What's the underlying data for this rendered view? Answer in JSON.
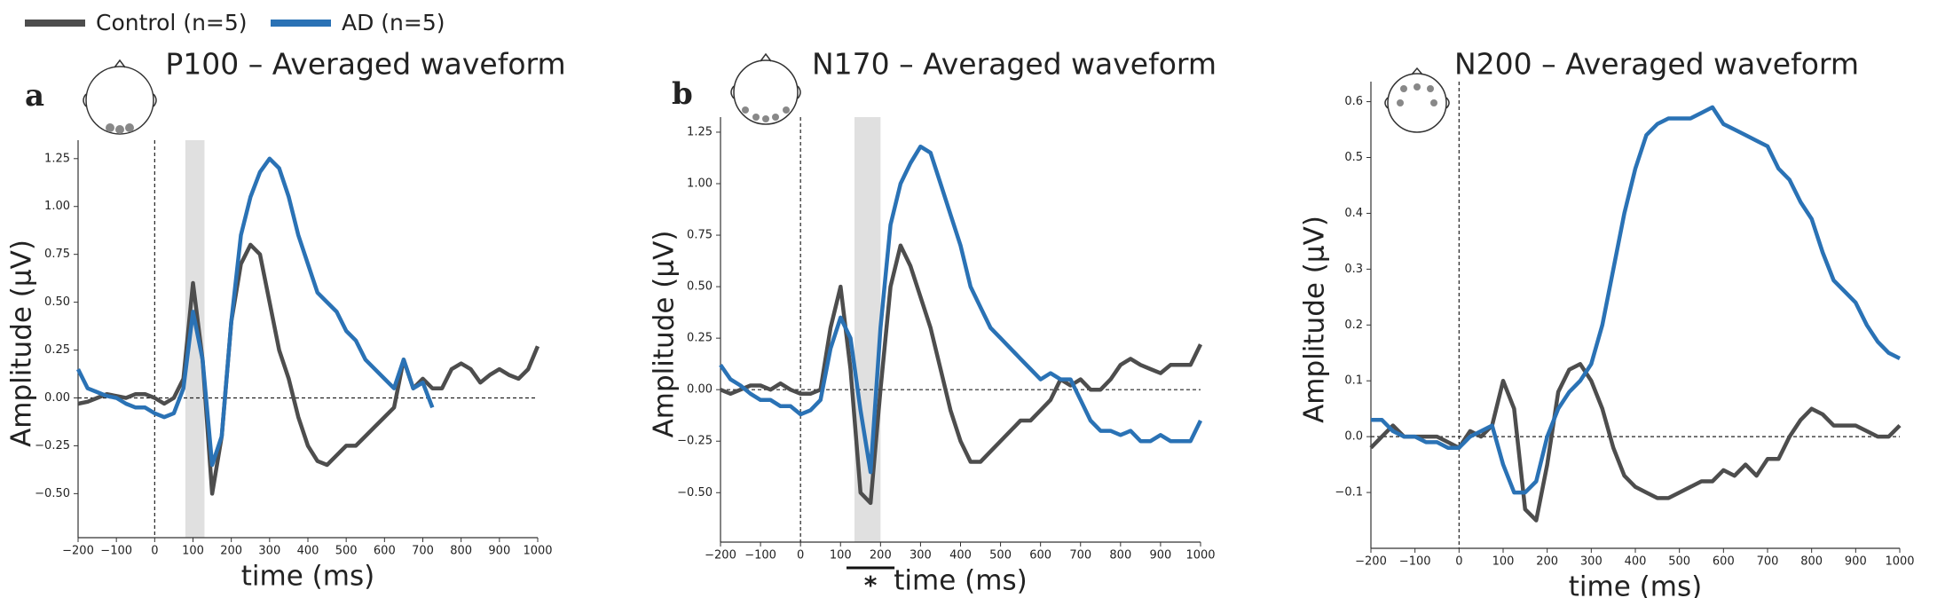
{
  "chart_data": [
    {
      "type": "line",
      "panel_label": "a",
      "title": "P100 – Averaged waveform",
      "xlabel": "time (ms)",
      "ylabel": "Amplitude (μV)",
      "xlim": [
        -200,
        1000
      ],
      "ylim": [
        -0.73,
        1.3
      ],
      "xticks": [
        {
          "value": -200,
          "label": "−200"
        },
        {
          "value": -100,
          "label": "−100"
        },
        0,
        100,
        200,
        300,
        400,
        500,
        600,
        700,
        800,
        900,
        1000
      ],
      "yticks": [
        {
          "value": -0.5,
          "label": "−0.50"
        },
        {
          "value": -0.25,
          "label": "−0.25"
        },
        {
          "value": 0,
          "label": "0.00"
        },
        0.25,
        {
          "value": 0.5,
          "label": "0.50"
        },
        0.75,
        {
          "value": 1,
          "label": "1.00"
        },
        1.25
      ],
      "shaded_interval": [
        80,
        130
      ],
      "x": [
        -200,
        -175,
        -150,
        -125,
        -100,
        -75,
        -50,
        -25,
        0,
        25,
        50,
        75,
        100,
        125,
        150,
        175,
        200,
        225,
        250,
        275,
        300,
        325,
        350,
        375,
        400,
        425,
        450,
        475,
        500,
        525,
        550,
        575,
        600,
        625,
        650,
        675,
        700,
        725,
        750,
        775,
        800,
        825,
        850,
        875,
        900,
        925,
        950,
        975,
        1000
      ],
      "series": [
        {
          "name": "Control (n=5)",
          "color": "#4d4d4d",
          "values": [
            -0.03,
            -0.02,
            0.0,
            0.02,
            0.01,
            0.0,
            0.02,
            0.02,
            0.0,
            -0.03,
            0.0,
            0.1,
            0.6,
            0.2,
            -0.5,
            -0.2,
            0.4,
            0.7,
            0.8,
            0.75,
            0.5,
            0.25,
            0.1,
            -0.1,
            -0.25,
            -0.33,
            -0.35,
            -0.3,
            -0.25,
            -0.25,
            -0.2,
            -0.15,
            -0.1,
            -0.05,
            0.2,
            0.05,
            0.1,
            0.05,
            0.05,
            0.15,
            0.18,
            0.15,
            0.08,
            0.12,
            0.15,
            0.12,
            0.1,
            0.15,
            0.27
          ]
        },
        {
          "name": "AD (n=5)",
          "color": "#2a72b5",
          "values": [
            0.15,
            0.05,
            0.03,
            0.01,
            0.0,
            -0.03,
            -0.05,
            -0.05,
            -0.08,
            -0.1,
            -0.08,
            0.05,
            0.45,
            0.2,
            -0.35,
            -0.2,
            0.4,
            0.85,
            1.05,
            1.18,
            1.25,
            1.2,
            1.05,
            0.85,
            0.7,
            0.55,
            0.5,
            0.45,
            0.35,
            0.3,
            0.2,
            0.15,
            0.1,
            0.05,
            0.2,
            0.05,
            0.08,
            -0.05,
            null,
            null,
            null,
            null,
            null,
            null,
            null,
            null,
            null,
            null,
            null
          ]
        }
      ]
    },
    {
      "type": "line",
      "panel_label": "b",
      "title": "N170 – Averaged waveform",
      "xlabel": "time (ms)",
      "ylabel": "Amplitude (μV)",
      "xlim": [
        -200,
        1000
      ],
      "ylim": [
        -0.74,
        1.28
      ],
      "xticks": [
        {
          "value": -200,
          "label": "−200"
        },
        {
          "value": -100,
          "label": "−100"
        },
        0,
        100,
        200,
        300,
        400,
        500,
        600,
        700,
        800,
        900,
        1000
      ],
      "yticks": [
        {
          "value": -0.5,
          "label": "−0.50"
        },
        {
          "value": -0.25,
          "label": "−0.25"
        },
        {
          "value": 0,
          "label": "0.00"
        },
        0.25,
        {
          "value": 0.5,
          "label": "0.50"
        },
        0.75,
        {
          "value": 1,
          "label": "1.00"
        },
        1.25
      ],
      "shaded_interval": [
        135,
        200
      ],
      "significance": {
        "text": "*",
        "x": [
          115,
          235
        ]
      },
      "x": [
        -200,
        -175,
        -150,
        -125,
        -100,
        -75,
        -50,
        -25,
        0,
        25,
        50,
        75,
        100,
        125,
        150,
        175,
        200,
        225,
        250,
        275,
        300,
        325,
        350,
        375,
        400,
        425,
        450,
        475,
        500,
        525,
        550,
        575,
        600,
        625,
        650,
        675,
        700,
        725,
        750,
        775,
        800,
        825,
        850,
        875,
        900,
        925,
        950,
        975,
        1000
      ],
      "series": [
        {
          "color": "#4d4d4d",
          "values": [
            0.0,
            -0.02,
            0.0,
            0.02,
            0.02,
            0.0,
            0.03,
            0.0,
            -0.02,
            -0.02,
            0.0,
            0.3,
            0.5,
            0.1,
            -0.5,
            -0.55,
            0.0,
            0.5,
            0.7,
            0.6,
            0.45,
            0.3,
            0.1,
            -0.1,
            -0.25,
            -0.35,
            -0.35,
            -0.3,
            -0.25,
            -0.2,
            -0.15,
            -0.15,
            -0.1,
            -0.05,
            0.05,
            0.02,
            0.05,
            0.0,
            0.0,
            0.05,
            0.12,
            0.15,
            0.12,
            0.1,
            0.08,
            0.12,
            0.12,
            0.12,
            0.22
          ]
        },
        {
          "color": "#2a72b5",
          "values": [
            0.12,
            0.05,
            0.02,
            -0.02,
            -0.05,
            -0.05,
            -0.08,
            -0.08,
            -0.12,
            -0.1,
            -0.05,
            0.2,
            0.35,
            0.25,
            -0.1,
            -0.4,
            0.3,
            0.8,
            1.0,
            1.1,
            1.18,
            1.15,
            1.0,
            0.85,
            0.7,
            0.5,
            0.4,
            0.3,
            0.25,
            0.2,
            0.15,
            0.1,
            0.05,
            0.08,
            0.05,
            0.05,
            -0.05,
            -0.15,
            -0.2,
            -0.2,
            -0.22,
            -0.2,
            -0.25,
            -0.25,
            -0.22,
            -0.25,
            -0.25,
            -0.25,
            -0.15
          ]
        }
      ]
    },
    {
      "type": "line",
      "title": "N200 – Averaged waveform",
      "xlabel": "time (ms)",
      "ylabel": "Amplitude (μV)",
      "xlim": [
        -200,
        1000
      ],
      "ylim": [
        -0.2,
        0.62
      ],
      "xticks": [
        {
          "value": -200,
          "label": "−200"
        },
        {
          "value": -100,
          "label": "−100"
        },
        0,
        100,
        200,
        300,
        400,
        500,
        600,
        700,
        800,
        900,
        1000
      ],
      "yticks": [
        {
          "value": -0.1,
          "label": "−0.1"
        },
        {
          "value": 0,
          "label": "0.0"
        },
        0.1,
        0.2,
        0.3,
        0.4,
        0.5,
        0.6
      ],
      "x": [
        -200,
        -175,
        -150,
        -125,
        -100,
        -75,
        -50,
        -25,
        0,
        25,
        50,
        75,
        100,
        125,
        150,
        175,
        200,
        225,
        250,
        275,
        300,
        325,
        350,
        375,
        400,
        425,
        450,
        475,
        500,
        525,
        550,
        575,
        600,
        625,
        650,
        675,
        700,
        725,
        750,
        775,
        800,
        825,
        850,
        875,
        900,
        925,
        950,
        975,
        1000
      ],
      "series": [
        {
          "color": "#4d4d4d",
          "values": [
            -0.02,
            0.0,
            0.02,
            0.0,
            0.0,
            0.0,
            0.0,
            -0.01,
            -0.02,
            0.01,
            0.0,
            0.02,
            0.1,
            0.05,
            -0.13,
            -0.15,
            -0.05,
            0.08,
            0.12,
            0.13,
            0.1,
            0.05,
            -0.02,
            -0.07,
            -0.09,
            -0.1,
            -0.11,
            -0.11,
            -0.1,
            -0.09,
            -0.08,
            -0.08,
            -0.06,
            -0.07,
            -0.05,
            -0.07,
            -0.04,
            -0.04,
            0.0,
            0.03,
            0.05,
            0.04,
            0.02,
            0.02,
            0.02,
            0.01,
            0.0,
            0.0,
            0.02
          ]
        },
        {
          "color": "#2a72b5",
          "values": [
            0.03,
            0.03,
            0.01,
            0.0,
            0.0,
            -0.01,
            -0.01,
            -0.02,
            -0.02,
            0.0,
            0.01,
            0.02,
            -0.05,
            -0.1,
            -0.1,
            -0.08,
            0.0,
            0.05,
            0.08,
            0.1,
            0.13,
            0.2,
            0.3,
            0.4,
            0.48,
            0.54,
            0.56,
            0.57,
            0.57,
            0.57,
            0.58,
            0.59,
            0.56,
            0.55,
            0.54,
            0.53,
            0.52,
            0.48,
            0.46,
            0.42,
            0.39,
            0.33,
            0.28,
            0.26,
            0.24,
            0.2,
            0.17,
            0.15,
            0.14
          ]
        }
      ]
    }
  ]
}
